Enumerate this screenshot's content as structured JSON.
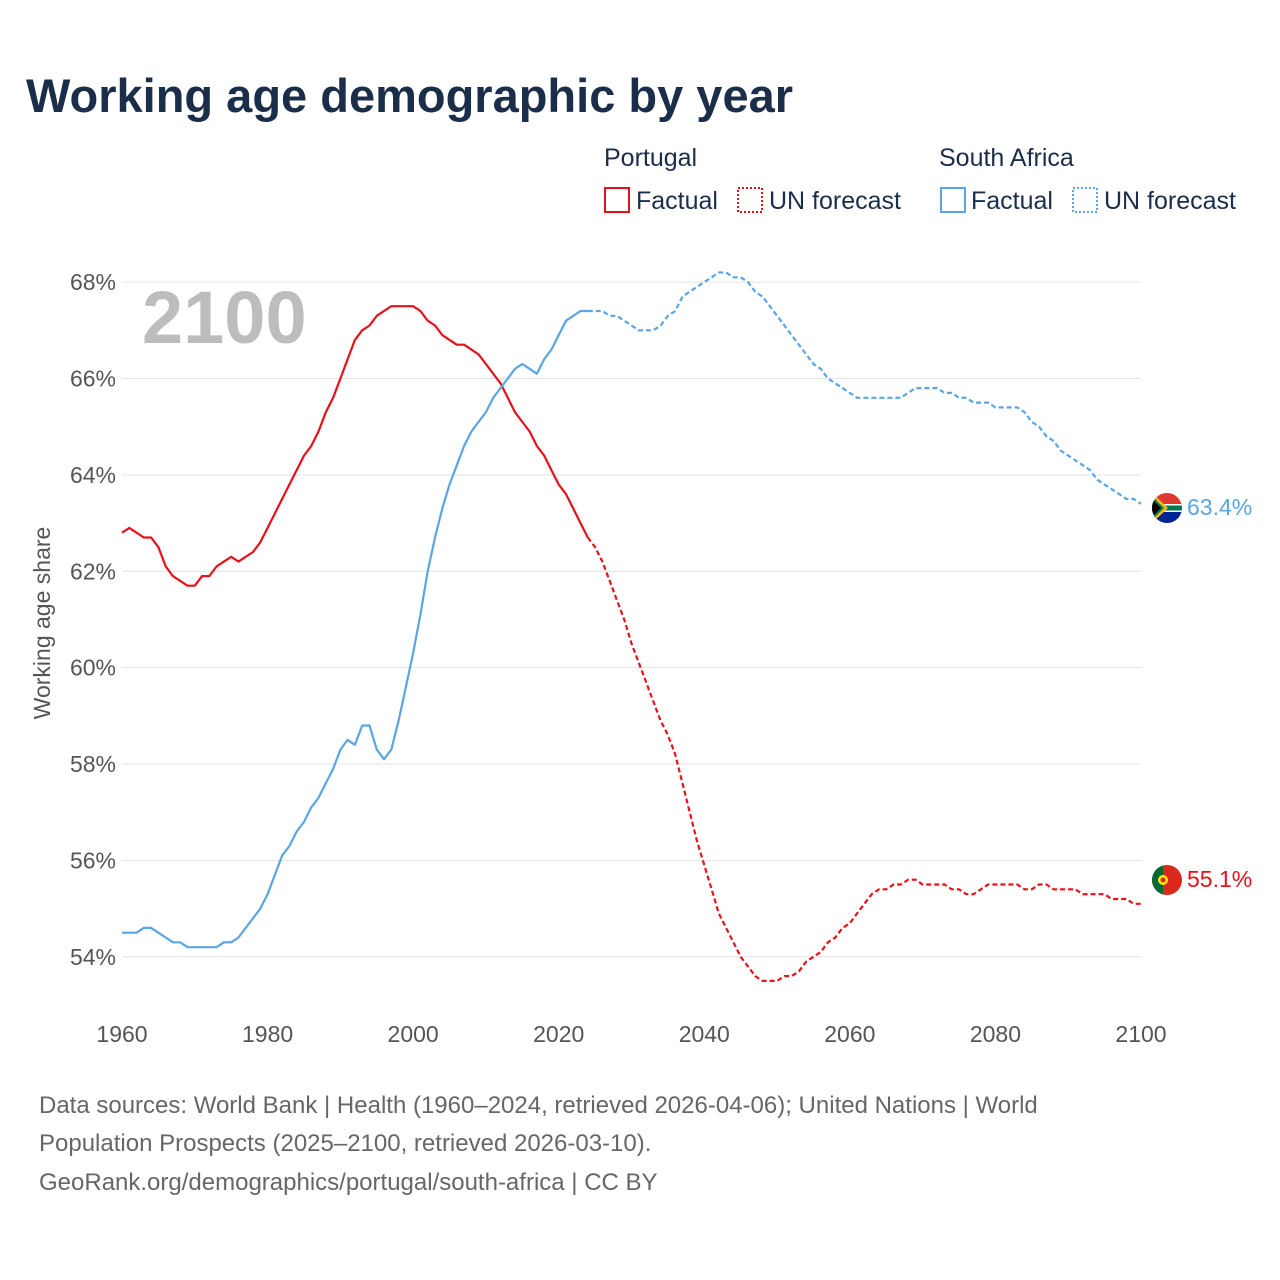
{
  "chart_data": {
    "type": "line",
    "title": "Working age demographic by year",
    "ylabel": "Working age share",
    "xlabel": "",
    "xlim": [
      1960,
      2100
    ],
    "ylim": [
      53,
      68.5
    ],
    "year_watermark": "2100",
    "x_ticks": [
      "1960",
      "1980",
      "2000",
      "2020",
      "2040",
      "2060",
      "2080",
      "2100"
    ],
    "y_ticks": [
      "54%",
      "56%",
      "58%",
      "60%",
      "62%",
      "64%",
      "66%",
      "68%"
    ],
    "legend": {
      "groups": [
        {
          "name": "Portugal",
          "items": [
            "Factual",
            "UN forecast"
          ],
          "color": "#e8101a"
        },
        {
          "name": "South Africa",
          "items": [
            "Factual",
            "UN forecast"
          ],
          "color": "#5ba5e5"
        }
      ]
    },
    "series": [
      {
        "name": "Portugal",
        "color": "#e8101a",
        "end_label": "55.1%",
        "flag": "portugal-flag",
        "factual": {
          "x": [
            1960,
            1961,
            1962,
            1963,
            1964,
            1965,
            1966,
            1967,
            1968,
            1969,
            1970,
            1971,
            1972,
            1973,
            1974,
            1975,
            1976,
            1977,
            1978,
            1979,
            1980,
            1981,
            1982,
            1983,
            1984,
            1985,
            1986,
            1987,
            1988,
            1989,
            1990,
            1991,
            1992,
            1993,
            1994,
            1995,
            1996,
            1997,
            1998,
            1999,
            2000,
            2001,
            2002,
            2003,
            2004,
            2005,
            2006,
            2007,
            2008,
            2009,
            2010,
            2011,
            2012,
            2013,
            2014,
            2015,
            2016,
            2017,
            2018,
            2019,
            2020,
            2021,
            2022,
            2023,
            2024
          ],
          "y": [
            62.8,
            62.9,
            62.8,
            62.7,
            62.7,
            62.5,
            62.1,
            61.9,
            61.8,
            61.7,
            61.7,
            61.9,
            61.9,
            62.1,
            62.2,
            62.3,
            62.2,
            62.3,
            62.4,
            62.6,
            62.9,
            63.2,
            63.5,
            63.8,
            64.1,
            64.4,
            64.6,
            64.9,
            65.3,
            65.6,
            66.0,
            66.4,
            66.8,
            67.0,
            67.1,
            67.3,
            67.4,
            67.5,
            67.5,
            67.5,
            67.5,
            67.4,
            67.2,
            67.1,
            66.9,
            66.8,
            66.7,
            66.7,
            66.6,
            66.5,
            66.3,
            66.1,
            65.9,
            65.6,
            65.3,
            65.1,
            64.9,
            64.6,
            64.4,
            64.1,
            63.8,
            63.6,
            63.3,
            63.0,
            62.7
          ]
        },
        "forecast": {
          "x": [
            2024,
            2025,
            2026,
            2027,
            2028,
            2029,
            2030,
            2031,
            2032,
            2033,
            2034,
            2035,
            2036,
            2037,
            2038,
            2039,
            2040,
            2041,
            2042,
            2043,
            2044,
            2045,
            2046,
            2047,
            2048,
            2049,
            2050,
            2051,
            2052,
            2053,
            2054,
            2055,
            2056,
            2057,
            2058,
            2059,
            2060,
            2061,
            2062,
            2063,
            2064,
            2065,
            2066,
            2067,
            2068,
            2069,
            2070,
            2071,
            2072,
            2073,
            2074,
            2075,
            2076,
            2077,
            2078,
            2079,
            2080,
            2081,
            2082,
            2083,
            2084,
            2085,
            2086,
            2087,
            2088,
            2089,
            2090,
            2091,
            2092,
            2093,
            2094,
            2095,
            2096,
            2097,
            2098,
            2099,
            2100
          ],
          "y": [
            62.7,
            62.5,
            62.2,
            61.8,
            61.4,
            61.0,
            60.5,
            60.1,
            59.7,
            59.3,
            58.9,
            58.6,
            58.2,
            57.6,
            57.0,
            56.4,
            55.9,
            55.4,
            54.9,
            54.6,
            54.3,
            54.0,
            53.8,
            53.6,
            53.5,
            53.5,
            53.5,
            53.6,
            53.6,
            53.7,
            53.9,
            54.0,
            54.1,
            54.3,
            54.4,
            54.6,
            54.7,
            54.9,
            55.1,
            55.3,
            55.4,
            55.4,
            55.5,
            55.5,
            55.6,
            55.6,
            55.5,
            55.5,
            55.5,
            55.5,
            55.4,
            55.4,
            55.3,
            55.3,
            55.4,
            55.5,
            55.5,
            55.5,
            55.5,
            55.5,
            55.4,
            55.4,
            55.5,
            55.5,
            55.4,
            55.4,
            55.4,
            55.4,
            55.3,
            55.3,
            55.3,
            55.3,
            55.2,
            55.2,
            55.2,
            55.1,
            55.1
          ]
        }
      },
      {
        "name": "South Africa",
        "color": "#5ba5e5",
        "end_label": "63.4%",
        "flag": "south-africa-flag",
        "factual": {
          "x": [
            1960,
            1961,
            1962,
            1963,
            1964,
            1965,
            1966,
            1967,
            1968,
            1969,
            1970,
            1971,
            1972,
            1973,
            1974,
            1975,
            1976,
            1977,
            1978,
            1979,
            1980,
            1981,
            1982,
            1983,
            1984,
            1985,
            1986,
            1987,
            1988,
            1989,
            1990,
            1991,
            1992,
            1993,
            1994,
            1995,
            1996,
            1997,
            1998,
            1999,
            2000,
            2001,
            2002,
            2003,
            2004,
            2005,
            2006,
            2007,
            2008,
            2009,
            2010,
            2011,
            2012,
            2013,
            2014,
            2015,
            2016,
            2017,
            2018,
            2019,
            2020,
            2021,
            2022,
            2023,
            2024
          ],
          "y": [
            54.5,
            54.5,
            54.5,
            54.6,
            54.6,
            54.5,
            54.4,
            54.3,
            54.3,
            54.2,
            54.2,
            54.2,
            54.2,
            54.2,
            54.3,
            54.3,
            54.4,
            54.6,
            54.8,
            55.0,
            55.3,
            55.7,
            56.1,
            56.3,
            56.6,
            56.8,
            57.1,
            57.3,
            57.6,
            57.9,
            58.3,
            58.5,
            58.4,
            58.8,
            58.8,
            58.3,
            58.1,
            58.3,
            58.9,
            59.6,
            60.3,
            61.1,
            62.0,
            62.7,
            63.3,
            63.8,
            64.2,
            64.6,
            64.9,
            65.1,
            65.3,
            65.6,
            65.8,
            66.0,
            66.2,
            66.3,
            66.2,
            66.1,
            66.4,
            66.6,
            66.9,
            67.2,
            67.3,
            67.4,
            67.4
          ]
        },
        "forecast": {
          "x": [
            2024,
            2025,
            2026,
            2027,
            2028,
            2029,
            2030,
            2031,
            2032,
            2033,
            2034,
            2035,
            2036,
            2037,
            2038,
            2039,
            2040,
            2041,
            2042,
            2043,
            2044,
            2045,
            2046,
            2047,
            2048,
            2049,
            2050,
            2051,
            2052,
            2053,
            2054,
            2055,
            2056,
            2057,
            2058,
            2059,
            2060,
            2061,
            2062,
            2063,
            2064,
            2065,
            2066,
            2067,
            2068,
            2069,
            2070,
            2071,
            2072,
            2073,
            2074,
            2075,
            2076,
            2077,
            2078,
            2079,
            2080,
            2081,
            2082,
            2083,
            2084,
            2085,
            2086,
            2087,
            2088,
            2089,
            2090,
            2091,
            2092,
            2093,
            2094,
            2095,
            2096,
            2097,
            2098,
            2099,
            2100
          ],
          "y": [
            67.4,
            67.4,
            67.4,
            67.3,
            67.3,
            67.2,
            67.1,
            67.0,
            67.0,
            67.0,
            67.1,
            67.3,
            67.4,
            67.7,
            67.8,
            67.9,
            68.0,
            68.1,
            68.2,
            68.2,
            68.1,
            68.1,
            68.0,
            67.8,
            67.7,
            67.5,
            67.3,
            67.1,
            66.9,
            66.7,
            66.5,
            66.3,
            66.2,
            66.0,
            65.9,
            65.8,
            65.7,
            65.6,
            65.6,
            65.6,
            65.6,
            65.6,
            65.6,
            65.6,
            65.7,
            65.8,
            65.8,
            65.8,
            65.8,
            65.7,
            65.7,
            65.6,
            65.6,
            65.5,
            65.5,
            65.5,
            65.4,
            65.4,
            65.4,
            65.4,
            65.3,
            65.1,
            65.0,
            64.8,
            64.7,
            64.5,
            64.4,
            64.3,
            64.2,
            64.1,
            63.9,
            63.8,
            63.7,
            63.6,
            63.5,
            63.5,
            63.4
          ]
        }
      }
    ],
    "source_lines": [
      "Data sources: World Bank | Health (1960–2024, retrieved 2026-04-06); United Nations | World",
      "Population Prospects (2025–2100, retrieved 2026-03-10).",
      "GeoRank.org/demographics/portugal/south-africa | CC BY"
    ]
  }
}
